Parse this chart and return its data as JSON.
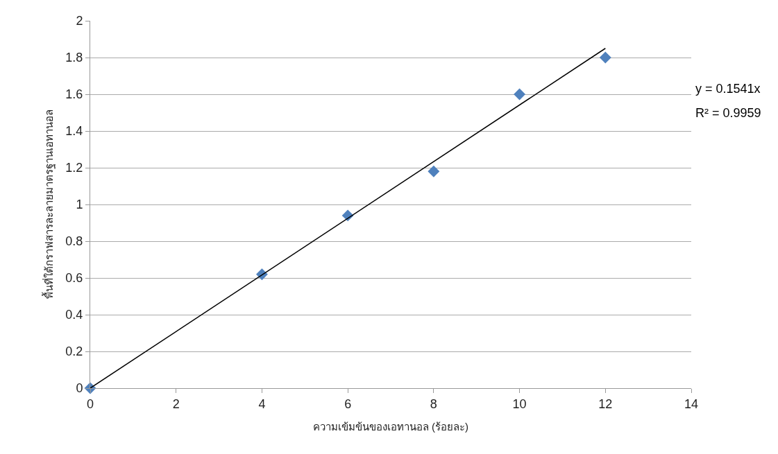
{
  "chart_data": {
    "type": "scatter",
    "xlabel": "ความเข้มข้นของเอทานอล (ร้อยละ)",
    "ylabel": "พื้นที่ใต้กราฟสารละลายมาตรฐานเอทานอล",
    "x": [
      0,
      4,
      6,
      8,
      10,
      12
    ],
    "series": [
      {
        "color": "#4f81bd",
        "marker": "diamond",
        "values": [
          0,
          0.62,
          0.94,
          1.18,
          1.6,
          1.8
        ]
      },
      {
        "type": "line",
        "color": "#000000",
        "marker": "none",
        "x": [
          0,
          12
        ],
        "values": [
          0,
          1.85
        ]
      }
    ],
    "annotations": [
      "y = 0.1541x",
      "R² = 0.9959"
    ],
    "xlim": [
      0,
      14
    ],
    "xticks": [
      0,
      2,
      4,
      6,
      8,
      10,
      12,
      14
    ],
    "ylim": [
      0,
      2
    ],
    "yticks": [
      0,
      0.2,
      0.4,
      0.6,
      0.8,
      1,
      1.2,
      1.4,
      1.6,
      1.8,
      2
    ],
    "grid": "y",
    "line_style": "solid"
  }
}
